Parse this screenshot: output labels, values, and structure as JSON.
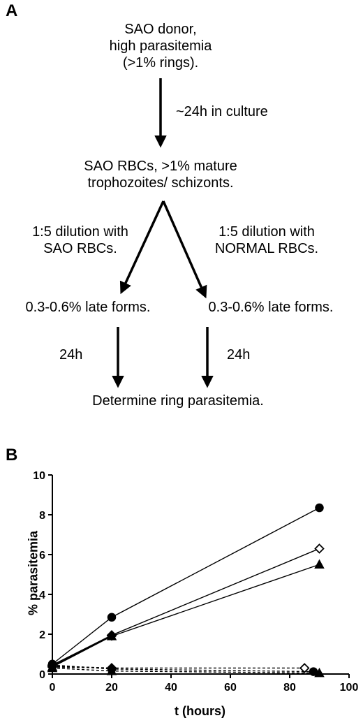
{
  "panel_a": {
    "label": "A",
    "donor": "SAO donor,\nhigh parasitemia\n(>1% rings).",
    "culture_step": "~24h in culture",
    "mature": "SAO RBCs, >1% mature\ntrophozoites/ schizonts.",
    "left_dilution": "1:5 dilution with\nSAO RBCs.",
    "right_dilution": "1:5 dilution with\nNORMAL RBCs.",
    "left_late": "0.3-0.6% late forms.",
    "right_late": "0.3-0.6% late forms.",
    "left_time": "24h",
    "right_time": "24h",
    "final": "Determine ring parasitemia."
  },
  "panel_b": {
    "label": "B"
  },
  "chart_data": {
    "type": "line",
    "xlabel": "t (hours)",
    "ylabel": "% parasitemia",
    "xlim": [
      0,
      100
    ],
    "ylim": [
      0,
      10
    ],
    "xticks": [
      0,
      20,
      40,
      60,
      80,
      100
    ],
    "yticks": [
      0,
      2,
      4,
      6,
      8,
      10
    ],
    "grid": false,
    "series": [
      {
        "marker": "circle",
        "filled": true,
        "style": "solid",
        "x": [
          0,
          20,
          90
        ],
        "y": [
          0.5,
          2.85,
          8.35
        ]
      },
      {
        "marker": "diamond",
        "filled": false,
        "style": "solid",
        "x": [
          0,
          20,
          90
        ],
        "y": [
          0.45,
          1.95,
          6.3
        ]
      },
      {
        "marker": "triangle",
        "filled": true,
        "style": "solid",
        "x": [
          0,
          20,
          90
        ],
        "y": [
          0.35,
          1.9,
          5.5
        ]
      },
      {
        "marker": "diamond",
        "filled": true,
        "style": "solid",
        "x": [
          0,
          20
        ],
        "y": [
          0.4,
          1.92
        ]
      },
      {
        "marker": "circle",
        "filled": true,
        "style": "dashed",
        "x": [
          0,
          20,
          88
        ],
        "y": [
          0.45,
          0.25,
          0.12
        ]
      },
      {
        "marker": "diamond",
        "filled": false,
        "style": "dashed",
        "x": [
          0,
          20,
          85
        ],
        "y": [
          0.4,
          0.3,
          0.3
        ]
      },
      {
        "marker": "triangle",
        "filled": true,
        "style": "dashed",
        "x": [
          0,
          20,
          90
        ],
        "y": [
          0.3,
          0.15,
          0.05
        ]
      },
      {
        "marker": "diamond",
        "filled": true,
        "style": "dashed",
        "x": [
          0,
          20
        ],
        "y": [
          0.35,
          0.3
        ]
      }
    ]
  }
}
